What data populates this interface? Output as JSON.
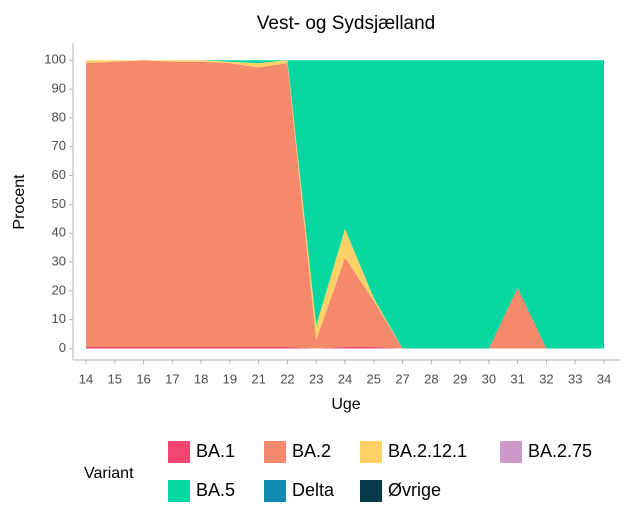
{
  "chart_data": {
    "type": "stacked_area",
    "title": "Vest- og Sydsjælland",
    "x_label": "Uge",
    "y_label": "Procent",
    "legend_title": "Variant",
    "categories": [
      "14",
      "15",
      "16",
      "17",
      "18",
      "19",
      "21",
      "22",
      "23",
      "24",
      "25",
      "27",
      "28",
      "29",
      "30",
      "31",
      "32",
      "33",
      "34"
    ],
    "series": [
      {
        "name": "BA.1",
        "color": "#ef476f",
        "values": [
          0.5,
          0.5,
          0.5,
          0.5,
          0.5,
          0.5,
          0.5,
          0.5,
          0,
          0.5,
          0.5,
          0,
          0,
          0,
          0,
          0,
          0,
          0,
          0
        ]
      },
      {
        "name": "BA.2",
        "color": "#f4896b",
        "values": [
          98.5,
          99,
          99.5,
          99,
          99,
          98.5,
          97,
          98.5,
          3,
          31,
          16,
          0,
          0,
          0,
          0,
          21,
          0,
          0,
          0
        ]
      },
      {
        "name": "BA.2.12.1",
        "color": "#ffd166",
        "values": [
          1,
          0.5,
          0,
          0.5,
          0.5,
          0.5,
          1.5,
          1,
          5,
          10,
          1,
          0,
          0,
          0,
          0,
          0,
          0,
          0,
          0
        ]
      },
      {
        "name": "BA.2.75",
        "color": "#cc99cc",
        "values": [
          0,
          0,
          0,
          0,
          0,
          0,
          0,
          0,
          0,
          0,
          0,
          0,
          0,
          0,
          0,
          0,
          0,
          0,
          0
        ]
      },
      {
        "name": "BA.5",
        "color": "#06d6a0",
        "values": [
          0,
          0,
          0,
          0,
          0,
          0.5,
          1,
          0,
          92,
          58.5,
          82.5,
          100,
          100,
          100,
          100,
          79,
          100,
          100,
          100
        ]
      },
      {
        "name": "Delta",
        "color": "#118ab2",
        "values": [
          0,
          0,
          0,
          0,
          0,
          0,
          0,
          0,
          0,
          0,
          0,
          0,
          0,
          0,
          0,
          0,
          0,
          0,
          0
        ]
      },
      {
        "name": "Øvrige",
        "color": "#073b4c",
        "values": [
          0,
          0,
          0,
          0,
          0,
          0,
          0,
          0,
          0,
          0,
          0,
          0,
          0,
          0,
          0,
          0,
          0,
          0,
          0
        ]
      }
    ],
    "ylim": [
      -4,
      106
    ],
    "yticks": [
      0,
      10,
      20,
      30,
      40,
      50,
      60,
      70,
      80,
      90,
      100
    ],
    "grid": false,
    "legend": "bottom"
  }
}
